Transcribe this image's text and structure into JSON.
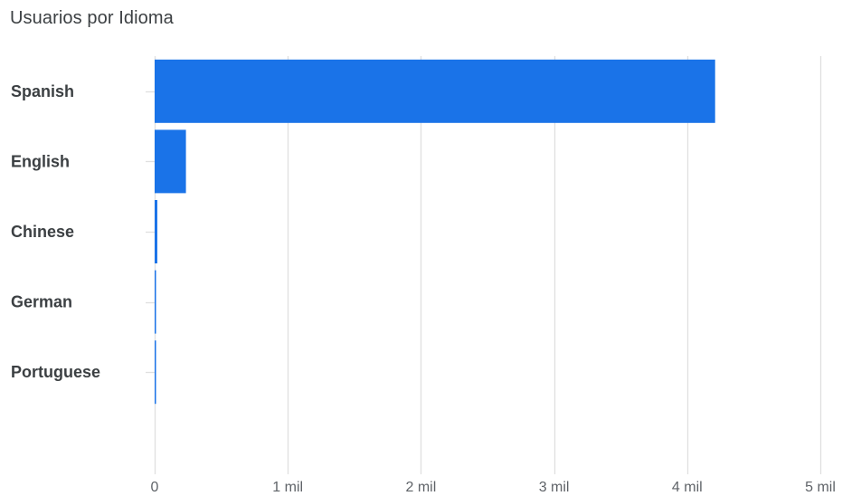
{
  "chart_title": "Usuarios por Idioma",
  "colors": {
    "bar": "#1a73e8",
    "gridline": "#e0e0e0",
    "label_text": "#3c4043",
    "tick_text": "#5f6368"
  },
  "chart_data": {
    "type": "bar",
    "orientation": "horizontal",
    "title": "Usuarios por Idioma",
    "xlabel": "",
    "ylabel": "",
    "categories": [
      "Spanish",
      "English",
      "Chinese",
      "German",
      "Portuguese"
    ],
    "values": [
      4210,
      235,
      20,
      8,
      6
    ],
    "xlim": [
      0,
      5000
    ],
    "ticks": [
      0,
      1000,
      2000,
      3000,
      4000,
      5000
    ],
    "tick_labels": [
      "0",
      "1 mil",
      "2 mil",
      "3 mil",
      "4 mil",
      "5 mil"
    ],
    "grid": true,
    "legend": "none"
  }
}
